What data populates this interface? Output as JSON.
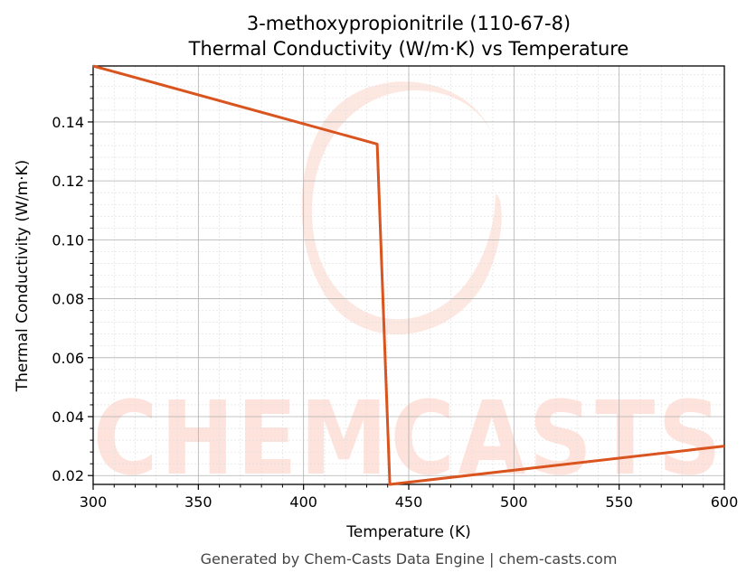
{
  "chart_data": {
    "type": "line",
    "title_line1": "3-methoxypropionitrile (110-67-8)",
    "title_line2": "Thermal Conductivity (W/m·K) vs Temperature",
    "xlabel": "Temperature (K)",
    "ylabel": "Thermal Conductivity (W/m·K)",
    "xlim": [
      300,
      600
    ],
    "ylim": [
      0.017,
      0.159
    ],
    "xticks": [
      300,
      350,
      400,
      450,
      500,
      550,
      600
    ],
    "yticks": [
      0.02,
      0.04,
      0.06,
      0.08,
      0.1,
      0.12,
      0.14
    ],
    "ytick_labels": [
      "0.02",
      "0.04",
      "0.06",
      "0.08",
      "0.10",
      "0.12",
      "0.14"
    ],
    "grid": true,
    "series": [
      {
        "color": "#d9541e",
        "x": [
          300,
          435,
          441,
          600
        ],
        "y": [
          0.159,
          0.1325,
          0.017,
          0.03
        ]
      }
    ]
  },
  "watermark": {
    "text": "CHEMCASTS",
    "color": "#fde3dc"
  },
  "footer": "Generated by Chem-Casts Data Engine | chem-casts.com"
}
